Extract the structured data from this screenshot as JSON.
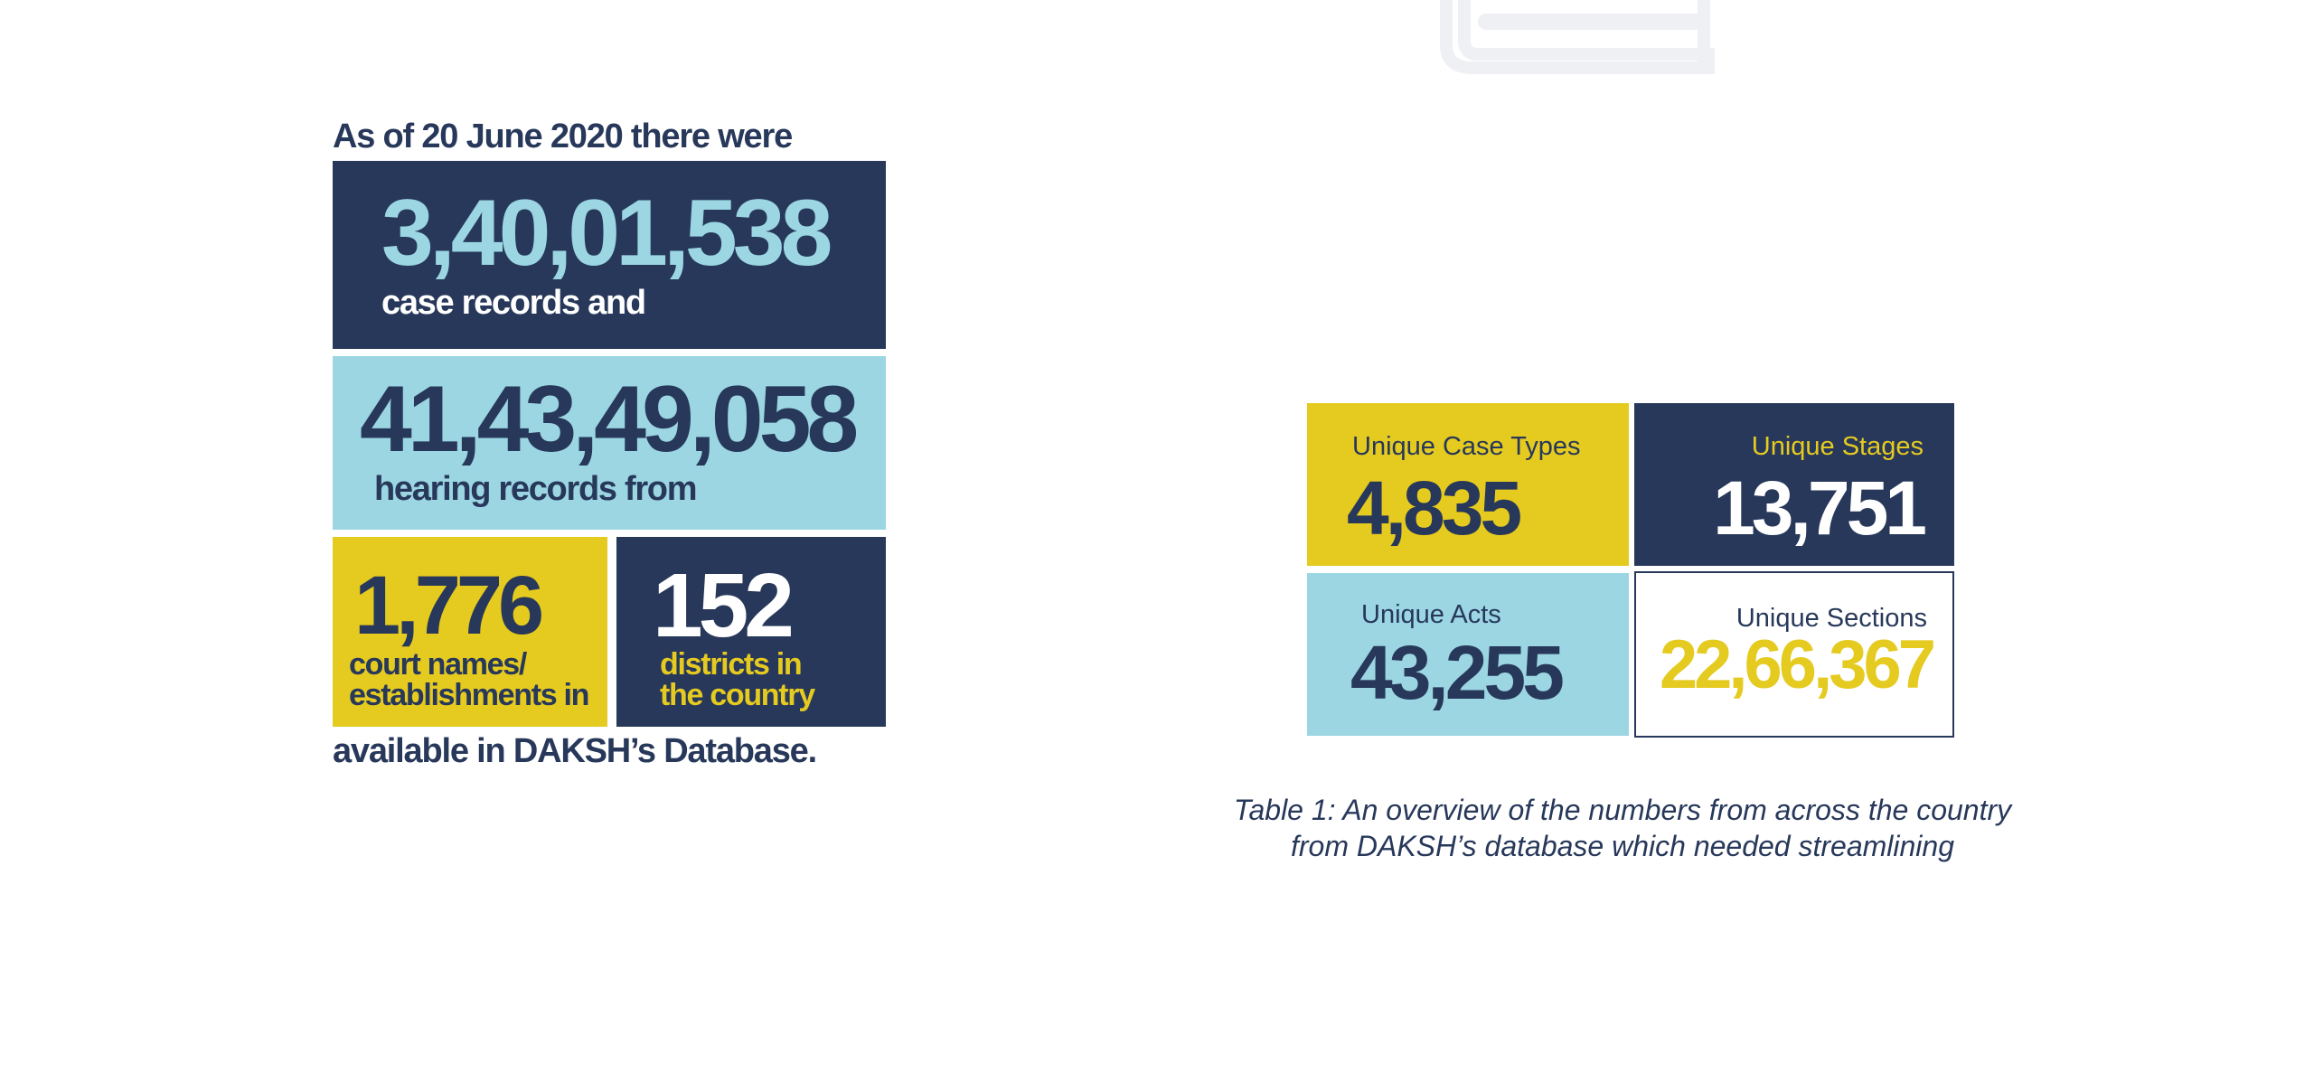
{
  "intro_text": "As of 20 June 2020 there were",
  "case_records": {
    "number": "3,40,01,538",
    "label": "case records and"
  },
  "hearing_records": {
    "number": "41,43,49,058",
    "label": "hearing records  from"
  },
  "courts": {
    "number": "1,776",
    "label_line1": "court names/",
    "label_line2": "establishments in"
  },
  "districts": {
    "number": "152",
    "label_line1": "districts in",
    "label_line2": "the country"
  },
  "outro_text": "available in DAKSH’s Database.",
  "table": {
    "case_types": {
      "label": "Unique Case Types",
      "value": "4,835"
    },
    "stages": {
      "label": "Unique Stages",
      "value": "13,751"
    },
    "acts": {
      "label": "Unique Acts",
      "value": "43,255"
    },
    "sections": {
      "label": "Unique Sections",
      "value": "22,66,367"
    }
  },
  "caption": {
    "line1": "Table 1:  An overview of the numbers from across the country",
    "line2": "from DAKSH’s database which needed streamlining"
  },
  "colors": {
    "navy": "#27385a",
    "sky": "#9bd6e2",
    "gold": "#e5ca20",
    "watermark": "#eef0f3"
  },
  "icons": {
    "watermark": "book-icon"
  }
}
